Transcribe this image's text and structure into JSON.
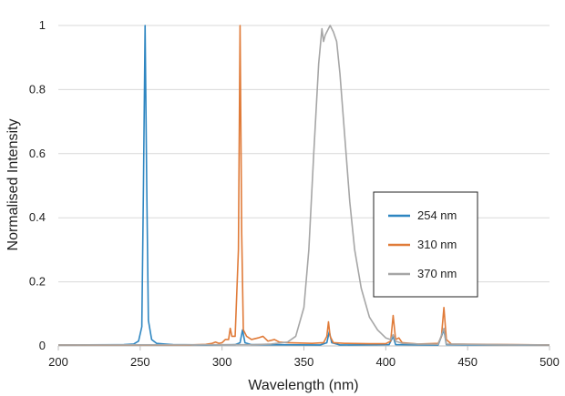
{
  "chart_data": {
    "type": "line",
    "title": "",
    "xlabel": "Wavelength (nm)",
    "ylabel": "Normalised Intensity",
    "xlim": [
      200,
      500
    ],
    "ylim": [
      0,
      1
    ],
    "x_ticks": [
      200,
      250,
      300,
      350,
      400,
      450,
      500
    ],
    "y_ticks": [
      0,
      0.2,
      0.4,
      0.6,
      0.8,
      1
    ],
    "y_tick_labels": [
      "0",
      "0.2",
      "0.4",
      "0.6",
      "0.8",
      "1"
    ],
    "grid": "horizontal",
    "legend_position": "right",
    "series": [
      {
        "name": "254 nm",
        "color": "#2E86C1",
        "points": [
          [
            200,
            0.003
          ],
          [
            240,
            0.004
          ],
          [
            246,
            0.006
          ],
          [
            249,
            0.015
          ],
          [
            251,
            0.06
          ],
          [
            252,
            0.5
          ],
          [
            253,
            1.0
          ],
          [
            254,
            0.5
          ],
          [
            255,
            0.08
          ],
          [
            257,
            0.02
          ],
          [
            260,
            0.008
          ],
          [
            265,
            0.006
          ],
          [
            270,
            0.004
          ],
          [
            290,
            0.003
          ],
          [
            308,
            0.004
          ],
          [
            311,
            0.01
          ],
          [
            312.5,
            0.05
          ],
          [
            314,
            0.01
          ],
          [
            318,
            0.004
          ],
          [
            360,
            0.003
          ],
          [
            364,
            0.01
          ],
          [
            365.5,
            0.045
          ],
          [
            367,
            0.01
          ],
          [
            372,
            0.003
          ],
          [
            402,
            0.004
          ],
          [
            404.5,
            0.03
          ],
          [
            406,
            0.004
          ],
          [
            432,
            0.003
          ],
          [
            435.5,
            0.05
          ],
          [
            437,
            0.004
          ],
          [
            500,
            0.003
          ]
        ]
      },
      {
        "name": "310 nm",
        "color": "#E07B39",
        "points": [
          [
            200,
            0.003
          ],
          [
            280,
            0.003
          ],
          [
            290,
            0.005
          ],
          [
            294,
            0.008
          ],
          [
            296,
            0.012
          ],
          [
            298,
            0.008
          ],
          [
            300,
            0.01
          ],
          [
            302,
            0.02
          ],
          [
            304,
            0.02
          ],
          [
            305,
            0.055
          ],
          [
            306,
            0.03
          ],
          [
            308,
            0.03
          ],
          [
            310,
            0.3
          ],
          [
            311,
            1.0
          ],
          [
            312,
            0.35
          ],
          [
            313,
            0.05
          ],
          [
            315,
            0.03
          ],
          [
            318,
            0.02
          ],
          [
            322,
            0.025
          ],
          [
            325,
            0.03
          ],
          [
            328,
            0.015
          ],
          [
            332,
            0.02
          ],
          [
            335,
            0.012
          ],
          [
            340,
            0.01
          ],
          [
            355,
            0.008
          ],
          [
            362,
            0.01
          ],
          [
            364,
            0.03
          ],
          [
            365,
            0.075
          ],
          [
            366,
            0.03
          ],
          [
            368,
            0.01
          ],
          [
            375,
            0.008
          ],
          [
            390,
            0.007
          ],
          [
            400,
            0.007
          ],
          [
            403,
            0.015
          ],
          [
            404.5,
            0.095
          ],
          [
            406,
            0.02
          ],
          [
            408,
            0.025
          ],
          [
            410,
            0.01
          ],
          [
            420,
            0.006
          ],
          [
            432,
            0.008
          ],
          [
            434,
            0.03
          ],
          [
            435.5,
            0.12
          ],
          [
            437,
            0.02
          ],
          [
            440,
            0.006
          ],
          [
            500,
            0.003
          ]
        ]
      },
      {
        "name": "370 nm",
        "color": "#A6A6A6",
        "points": [
          [
            200,
            0.003
          ],
          [
            320,
            0.004
          ],
          [
            330,
            0.006
          ],
          [
            340,
            0.012
          ],
          [
            345,
            0.03
          ],
          [
            350,
            0.12
          ],
          [
            353,
            0.3
          ],
          [
            356,
            0.6
          ],
          [
            359,
            0.88
          ],
          [
            361,
            0.99
          ],
          [
            362,
            0.95
          ],
          [
            363,
            0.97
          ],
          [
            365,
            0.99
          ],
          [
            366,
            1.0
          ],
          [
            368,
            0.98
          ],
          [
            370,
            0.95
          ],
          [
            372,
            0.85
          ],
          [
            375,
            0.65
          ],
          [
            378,
            0.45
          ],
          [
            381,
            0.3
          ],
          [
            385,
            0.18
          ],
          [
            390,
            0.09
          ],
          [
            395,
            0.05
          ],
          [
            400,
            0.025
          ],
          [
            403,
            0.02
          ],
          [
            404.5,
            0.035
          ],
          [
            406,
            0.015
          ],
          [
            410,
            0.008
          ],
          [
            420,
            0.006
          ],
          [
            432,
            0.005
          ],
          [
            435.5,
            0.055
          ],
          [
            437,
            0.006
          ],
          [
            450,
            0.005
          ],
          [
            500,
            0.003
          ]
        ]
      }
    ]
  }
}
